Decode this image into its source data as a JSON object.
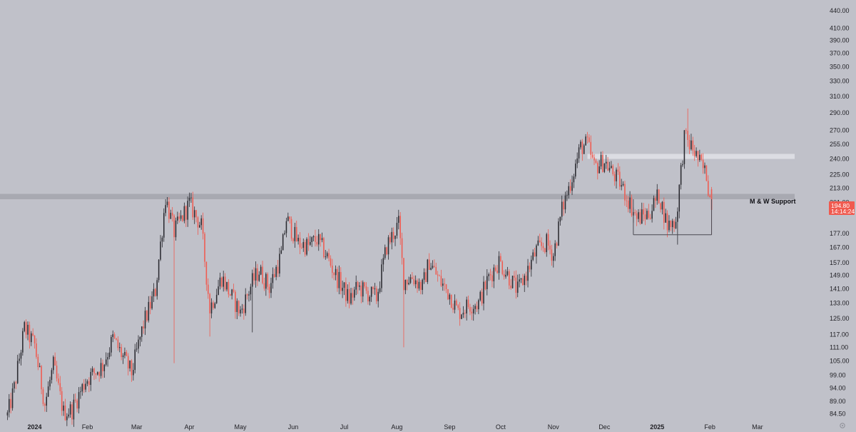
{
  "chart_data": {
    "type": "candlestick",
    "y_scale": "log",
    "ylim": [
      82,
      460
    ],
    "y_ticks": [
      "440.00",
      "410.00",
      "390.00",
      "370.00",
      "350.00",
      "330.00",
      "310.00",
      "290.00",
      "270.00",
      "255.00",
      "240.00",
      "225.00",
      "213.00",
      "201.00",
      "177.00",
      "167.00",
      "157.00",
      "149.00",
      "141.00",
      "133.00",
      "125.00",
      "117.00",
      "111.00",
      "105.00",
      "99.00",
      "94.00",
      "89.00",
      "84.50"
    ],
    "x_start": "2023-12-15",
    "x_end": "2025-03-22",
    "x_ticks": [
      {
        "label": "2024",
        "date": "2024-01-01",
        "bold": true
      },
      {
        "label": "Feb",
        "date": "2024-02-01"
      },
      {
        "label": "Mar",
        "date": "2024-03-01"
      },
      {
        "label": "Apr",
        "date": "2024-04-01"
      },
      {
        "label": "May",
        "date": "2024-05-01"
      },
      {
        "label": "Jun",
        "date": "2024-06-01"
      },
      {
        "label": "Jul",
        "date": "2024-07-01"
      },
      {
        "label": "Aug",
        "date": "2024-08-01"
      },
      {
        "label": "Sep",
        "date": "2024-09-01"
      },
      {
        "label": "Oct",
        "date": "2024-10-01"
      },
      {
        "label": "Nov",
        "date": "2024-11-01"
      },
      {
        "label": "Dec",
        "date": "2024-12-01"
      },
      {
        "label": "2025",
        "date": "2025-01-01",
        "bold": true
      },
      {
        "label": "Feb",
        "date": "2025-02-01"
      },
      {
        "label": "Mar",
        "date": "2025-03-01"
      }
    ],
    "anchors": [
      [
        "2023-12-16",
        84
      ],
      [
        "2023-12-20",
        94
      ],
      [
        "2023-12-26",
        120
      ],
      [
        "2024-01-01",
        112
      ],
      [
        "2024-01-07",
        88
      ],
      [
        "2024-01-12",
        103
      ],
      [
        "2024-01-18",
        85
      ],
      [
        "2024-01-23",
        86
      ],
      [
        "2024-01-31",
        97
      ],
      [
        "2024-02-10",
        103
      ],
      [
        "2024-02-16",
        115
      ],
      [
        "2024-02-21",
        108
      ],
      [
        "2024-02-27",
        100
      ],
      [
        "2024-03-05",
        122
      ],
      [
        "2024-03-12",
        140
      ],
      [
        "2024-03-18",
        205
      ],
      [
        "2024-03-23",
        178
      ],
      [
        "2024-04-01",
        200
      ],
      [
        "2024-04-08",
        182
      ],
      [
        "2024-04-13",
        130
      ],
      [
        "2024-04-20",
        148
      ],
      [
        "2024-04-25",
        138
      ],
      [
        "2024-05-01",
        128
      ],
      [
        "2024-05-08",
        145
      ],
      [
        "2024-05-12",
        152
      ],
      [
        "2024-05-18",
        142
      ],
      [
        "2024-05-25",
        162
      ],
      [
        "2024-05-28",
        188
      ],
      [
        "2024-06-04",
        170
      ],
      [
        "2024-06-10",
        168
      ],
      [
        "2024-06-15",
        173
      ],
      [
        "2024-06-20",
        163
      ],
      [
        "2024-06-26",
        149
      ],
      [
        "2024-07-04",
        135
      ],
      [
        "2024-07-09",
        142
      ],
      [
        "2024-07-14",
        139
      ],
      [
        "2024-07-20",
        136
      ],
      [
        "2024-07-26",
        168
      ],
      [
        "2024-08-02",
        184
      ],
      [
        "2024-08-05",
        146
      ],
      [
        "2024-08-10",
        148
      ],
      [
        "2024-08-16",
        142
      ],
      [
        "2024-08-20",
        158
      ],
      [
        "2024-08-26",
        146
      ],
      [
        "2024-09-01",
        138
      ],
      [
        "2024-09-06",
        128
      ],
      [
        "2024-09-12",
        132
      ],
      [
        "2024-09-18",
        133
      ],
      [
        "2024-09-24",
        148
      ],
      [
        "2024-09-30",
        158
      ],
      [
        "2024-10-06",
        148
      ],
      [
        "2024-10-11",
        140
      ],
      [
        "2024-10-16",
        150
      ],
      [
        "2024-10-22",
        165
      ],
      [
        "2024-10-28",
        170
      ],
      [
        "2024-11-01",
        162
      ],
      [
        "2024-11-06",
        195
      ],
      [
        "2024-11-11",
        218
      ],
      [
        "2024-11-17",
        252
      ],
      [
        "2024-11-21",
        255
      ],
      [
        "2024-11-25",
        232
      ],
      [
        "2024-12-01",
        238
      ],
      [
        "2024-12-05",
        228
      ],
      [
        "2024-12-10",
        218
      ],
      [
        "2024-12-16",
        200
      ],
      [
        "2024-12-20",
        188
      ],
      [
        "2024-12-27",
        192
      ],
      [
        "2025-01-02",
        207
      ],
      [
        "2025-01-07",
        183
      ],
      [
        "2025-01-12",
        186
      ],
      [
        "2025-01-17",
        262
      ],
      [
        "2025-01-22",
        250
      ],
      [
        "2025-01-27",
        233
      ],
      [
        "2025-01-30",
        225
      ],
      [
        "2025-02-02",
        194.8
      ]
    ],
    "special_wicks": [
      {
        "date": "2024-01-26",
        "low": 118
      },
      {
        "date": "2024-03-23",
        "low": 104
      },
      {
        "date": "2024-04-13",
        "low": 116
      },
      {
        "date": "2024-05-08",
        "low": 118
      },
      {
        "date": "2024-08-05",
        "low": 111
      },
      {
        "date": "2025-01-19",
        "high": 295
      },
      {
        "date": "2025-01-13",
        "low": 169
      }
    ],
    "support_zone": {
      "low": 203.5,
      "high": 208
    },
    "upper_zone": {
      "low": 240,
      "high": 245,
      "from": "2024-11-21"
    },
    "range_box": {
      "from": "2024-12-18",
      "to": "2025-02-02",
      "low": 176
    },
    "annotation": "M & W Support",
    "last_price": "194.80",
    "countdown": "14:14:24",
    "colors": {
      "background": "#c0c1c9",
      "up": "#2a2a30",
      "down": "#f05a4f",
      "zone": "#a8a9b1",
      "upper_zone": "#dcdde3",
      "price_tag": "#f05a4f"
    }
  }
}
